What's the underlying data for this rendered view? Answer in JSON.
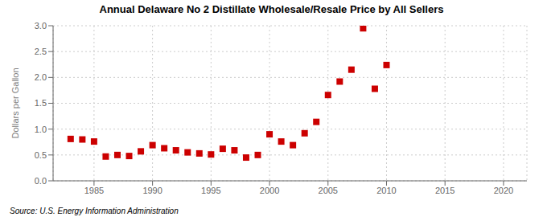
{
  "chart_data": {
    "type": "scatter",
    "title": "Annual Delaware No 2 Distillate Wholesale/Resale Price by All Sellers",
    "y_label": "Dollars per Gallon",
    "annotations": [
      "Source: U.S. Energy Information Administration"
    ],
    "color": "#cc0000",
    "marker": "square",
    "grid": true,
    "xlim": [
      1981.5,
      2022
    ],
    "ylim": [
      0.0,
      3.0
    ],
    "xticks": [
      1985,
      1990,
      1995,
      2000,
      2005,
      2010,
      2015,
      2020
    ],
    "yticks": [
      {
        "value": 0,
        "label": "0.0"
      },
      0.5,
      {
        "value": 1,
        "label": "1.0"
      },
      1.5,
      {
        "value": 2,
        "label": "2.0"
      },
      2.5,
      {
        "value": 3,
        "label": "3.0"
      }
    ],
    "x": [
      1983,
      1984,
      1985,
      1986,
      1987,
      1988,
      1989,
      1990,
      1991,
      1992,
      1993,
      1994,
      1995,
      1996,
      1997,
      1998,
      1999,
      2000,
      2001,
      2002,
      2003,
      2004,
      2005,
      2006,
      2007,
      2008,
      2009,
      2010
    ],
    "values": [
      0.81,
      0.8,
      0.76,
      0.47,
      0.5,
      0.48,
      0.57,
      0.69,
      0.63,
      0.59,
      0.55,
      0.53,
      0.51,
      0.62,
      0.59,
      0.45,
      0.5,
      0.9,
      0.76,
      0.69,
      0.92,
      1.14,
      1.66,
      1.92,
      2.15,
      2.95,
      1.78,
      2.24
    ]
  }
}
